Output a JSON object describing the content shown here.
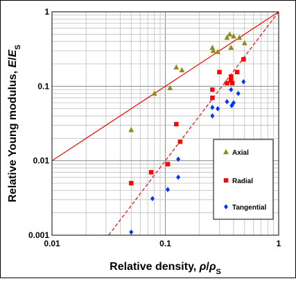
{
  "chart_data": {
    "type": "scatter",
    "x_scale": "log",
    "y_scale": "log",
    "xlim": [
      0.01,
      1
    ],
    "ylim": [
      0.001,
      1
    ],
    "grid": true,
    "legend_position": "bottom-right",
    "xlabel_parts": [
      "Relative density, ",
      "ρ",
      "/",
      "ρ",
      "S"
    ],
    "ylabel_parts": [
      "Relative Young modulus, ",
      "E",
      "/",
      "E",
      "S"
    ],
    "x_ticks": [
      {
        "value": 0.01,
        "label": "0.01"
      },
      {
        "value": 0.1,
        "label": "0.1"
      },
      {
        "value": 1,
        "label": "1"
      }
    ],
    "y_ticks": [
      {
        "value": 0.001,
        "label": "0.001"
      },
      {
        "value": 0.01,
        "label": "0.01"
      },
      {
        "value": 0.1,
        "label": "0.1"
      },
      {
        "value": 1,
        "label": "1"
      }
    ],
    "series": [
      {
        "name": "Axial",
        "marker": "triangle",
        "color": "#8c8c1e",
        "points": [
          [
            0.05,
            0.026
          ],
          [
            0.08,
            0.08
          ],
          [
            0.11,
            0.095
          ],
          [
            0.125,
            0.18
          ],
          [
            0.14,
            0.165
          ],
          [
            0.26,
            0.33
          ],
          [
            0.265,
            0.3
          ],
          [
            0.29,
            0.29
          ],
          [
            0.35,
            0.45
          ],
          [
            0.37,
            0.5
          ],
          [
            0.38,
            0.33
          ],
          [
            0.4,
            0.47
          ],
          [
            0.45,
            0.45
          ],
          [
            0.5,
            0.38
          ]
        ]
      },
      {
        "name": "Radial",
        "marker": "square",
        "color": "#ff0000",
        "points": [
          [
            0.05,
            0.005
          ],
          [
            0.075,
            0.007
          ],
          [
            0.105,
            0.009
          ],
          [
            0.125,
            0.031
          ],
          [
            0.135,
            0.018
          ],
          [
            0.26,
            0.09
          ],
          [
            0.26,
            0.07
          ],
          [
            0.3,
            0.155
          ],
          [
            0.35,
            0.11
          ],
          [
            0.38,
            0.135
          ],
          [
            0.38,
            0.12
          ],
          [
            0.39,
            0.11
          ],
          [
            0.43,
            0.155
          ],
          [
            0.49,
            0.23
          ]
        ]
      },
      {
        "name": "Tangential",
        "marker": "diamond",
        "color": "#0033ff",
        "points": [
          [
            0.05,
            0.0011
          ],
          [
            0.077,
            0.0031
          ],
          [
            0.105,
            0.0041
          ],
          [
            0.13,
            0.006
          ],
          [
            0.13,
            0.0105
          ],
          [
            0.26,
            0.052
          ],
          [
            0.26,
            0.04
          ],
          [
            0.29,
            0.05
          ],
          [
            0.35,
            0.062
          ],
          [
            0.38,
            0.09
          ],
          [
            0.385,
            0.055
          ],
          [
            0.4,
            0.06
          ],
          [
            0.44,
            0.08
          ],
          [
            0.49,
            0.115
          ]
        ]
      }
    ],
    "lines": [
      {
        "style": "solid",
        "color": "#ff0000",
        "points": [
          [
            0.01,
            0.01
          ],
          [
            1,
            1
          ]
        ]
      },
      {
        "style": "dashed",
        "color": "#ff0000",
        "points": [
          [
            0.0316,
            0.001
          ],
          [
            1,
            1
          ]
        ]
      }
    ]
  }
}
